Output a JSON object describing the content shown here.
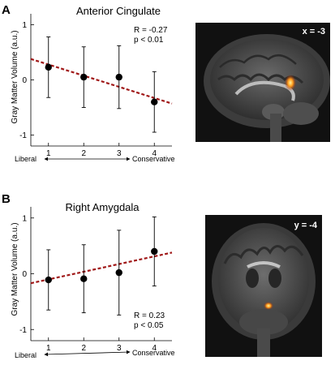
{
  "panels": [
    {
      "label": "A",
      "title": "Anterior Cingulate",
      "stats": [
        "R = -0.27",
        "p < 0.01"
      ],
      "ylabel": "Gray Matter Volume (a.u.)",
      "axis_left": "Liberal",
      "axis_right": "Conservative",
      "brain_label": "x = -3"
    },
    {
      "label": "B",
      "title": "Right Amygdala",
      "stats": [
        "R = 0.23",
        "p < 0.05"
      ],
      "ylabel": "Gray Matter Volume (a.u.)",
      "axis_left": "Liberal",
      "axis_right": "Conservative",
      "brain_label": "y = -4"
    }
  ],
  "chart_data": [
    {
      "type": "scatter",
      "title": "Anterior Cingulate",
      "ylabel": "Gray Matter Volume (a.u.)",
      "x": [
        1,
        2,
        3,
        4
      ],
      "xticks": [
        1,
        2,
        3,
        4
      ],
      "yticks": [
        -1,
        0,
        1
      ],
      "xlim": [
        0.5,
        4.5
      ],
      "ylim": [
        -1.2,
        1.2
      ],
      "series": [
        {
          "values": [
            0.23,
            0.05,
            0.05,
            -0.4
          ],
          "error": [
            0.55,
            0.55,
            0.57,
            0.55
          ]
        }
      ],
      "fit_line": {
        "x": [
          0.5,
          4.5
        ],
        "y": [
          0.38,
          -0.43
        ],
        "color": "#a01818",
        "style": "dashed"
      },
      "annotations": [
        "R = -0.27",
        "p < 0.01"
      ],
      "grid": false
    },
    {
      "type": "scatter",
      "title": "Right Amygdala",
      "ylabel": "Gray Matter Volume (a.u.)",
      "x": [
        1,
        2,
        3,
        4
      ],
      "xticks": [
        1,
        2,
        3,
        4
      ],
      "yticks": [
        -1,
        0,
        1
      ],
      "xlim": [
        0.5,
        4.5
      ],
      "ylim": [
        -1.2,
        1.2
      ],
      "series": [
        {
          "values": [
            -0.11,
            -0.09,
            0.02,
            0.4
          ],
          "error": [
            0.54,
            0.61,
            0.76,
            0.62
          ]
        }
      ],
      "fit_line": {
        "x": [
          0.5,
          4.5
        ],
        "y": [
          -0.17,
          0.38
        ],
        "color": "#a01818",
        "style": "dashed"
      },
      "annotations": [
        "R = 0.23",
        "p < 0.05"
      ],
      "grid": false
    }
  ],
  "colors": {
    "fit_line": "#a01818",
    "points": "#000000",
    "blob": "#ff9a1a"
  }
}
